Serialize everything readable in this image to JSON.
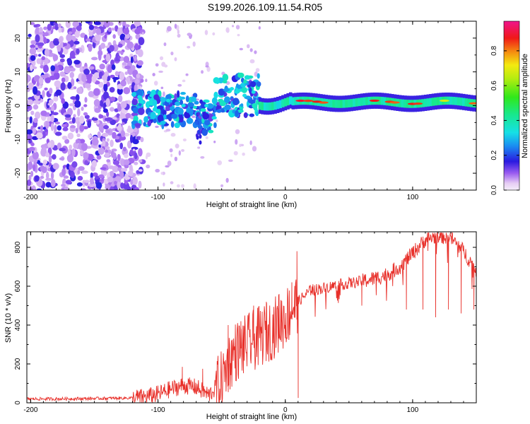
{
  "title": "S199.2026.109.11.54.R05",
  "colors": {
    "snr_line": "#e8302a",
    "axis": "#000000",
    "background": "#ffffff"
  },
  "chart_data": [
    {
      "type": "heatmap",
      "name": "spectrogram",
      "xlabel": "Height of straight line (km)",
      "ylabel": "Frequency (Hz)",
      "xlim": [
        -203,
        150
      ],
      "ylim": [
        -25,
        25
      ],
      "xticks": [
        -200,
        -100,
        0,
        100
      ],
      "yticks": [
        -20,
        -10,
        0,
        10,
        20
      ],
      "grid": false,
      "colorbar": {
        "label": "Normalized spectral amplitude",
        "range": [
          0,
          0.97
        ],
        "ticks": [
          0.0,
          0.2,
          0.4,
          0.6,
          0.8
        ]
      },
      "features": [
        {
          "label": "broadband noise",
          "x_range": [
            -203,
            -120
          ],
          "f_range": [
            -25,
            25
          ],
          "amplitude": 0.08
        },
        {
          "label": "scattered echo",
          "x_range": [
            -120,
            -20
          ],
          "f_range": [
            -8,
            8
          ],
          "amplitude": 0.25
        },
        {
          "label": "coherent ridge",
          "x_range": [
            -20,
            150
          ],
          "f_center": 1,
          "f_halfwidth": 1.5,
          "amplitude": 0.9
        }
      ]
    },
    {
      "type": "line",
      "name": "snr",
      "xlabel": "Height of straight line (km)",
      "ylabel": "SNR (10 * v/v)",
      "xlim": [
        -203,
        150
      ],
      "ylim": [
        0,
        880
      ],
      "xticks": [
        -200,
        -100,
        0,
        100
      ],
      "yticks": [
        0,
        200,
        400,
        600,
        800
      ],
      "grid": false,
      "series": [
        {
          "name": "SNR",
          "x": [
            -203,
            -180,
            -150,
            -120,
            -110,
            -100,
            -90,
            -80,
            -70,
            -60,
            -50,
            -45,
            -40,
            -30,
            -20,
            -10,
            0,
            5,
            10,
            20,
            30,
            40,
            50,
            60,
            70,
            80,
            90,
            100,
            110,
            120,
            130,
            140,
            150
          ],
          "y": [
            20,
            20,
            22,
            25,
            30,
            45,
            70,
            90,
            80,
            40,
            110,
            200,
            260,
            300,
            340,
            380,
            440,
            480,
            520,
            580,
            590,
            605,
            615,
            625,
            640,
            660,
            700,
            770,
            840,
            860,
            850,
            780,
            680
          ],
          "spikes": [
            [
              -81,
              185
            ],
            [
              -65,
              175
            ],
            [
              -45,
              400
            ],
            [
              -35,
              420
            ],
            [
              -25,
              500
            ],
            [
              -15,
              520
            ],
            [
              -5,
              560
            ],
            [
              5,
              620
            ],
            [
              9,
              780
            ],
            [
              10,
              25
            ],
            [
              60,
              500
            ],
            [
              95,
              480
            ],
            [
              108,
              480
            ],
            [
              118,
              440
            ],
            [
              128,
              480
            ],
            [
              138,
              460
            ],
            [
              148,
              480
            ]
          ]
        }
      ]
    }
  ]
}
